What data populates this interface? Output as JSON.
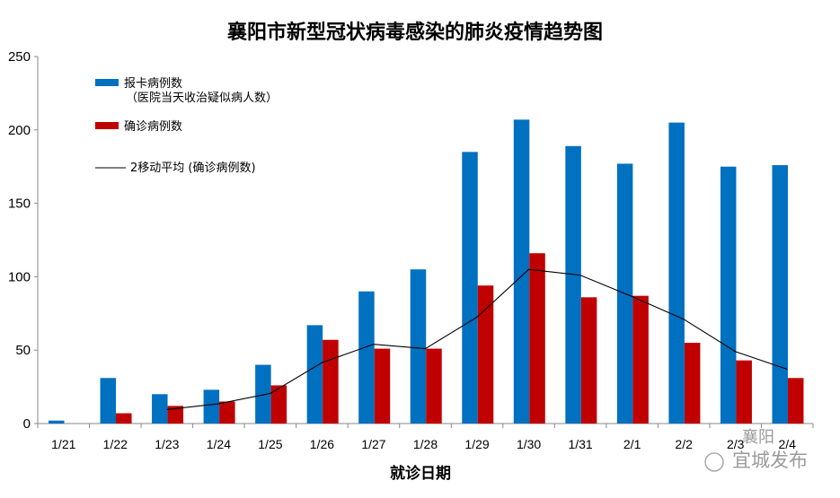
{
  "chart_data": {
    "type": "bar",
    "title": "襄阳市新型冠状病毒感染的肺炎疫情趋势图",
    "xlabel": "就诊日期",
    "ylabel": "",
    "ylim": [
      0,
      250
    ],
    "yticks": [
      0,
      50,
      100,
      150,
      200,
      250
    ],
    "grid": false,
    "legend_placement": "top-left",
    "categories": [
      "1/21",
      "1/22",
      "1/23",
      "1/24",
      "1/25",
      "1/26",
      "1/27",
      "1/28",
      "1/29",
      "1/30",
      "1/31",
      "2/1",
      "2/2",
      "2/3",
      "2/4"
    ],
    "series": [
      {
        "name": "报卡病例数",
        "name_line2": "（医院当天收治疑似病人数）",
        "type": "bar",
        "color": "#0070C0",
        "values": [
          2,
          31,
          20,
          23,
          40,
          67,
          90,
          105,
          185,
          207,
          189,
          177,
          205,
          175,
          176
        ]
      },
      {
        "name": "确诊病例数",
        "type": "bar",
        "color": "#C00000",
        "values": [
          0,
          7,
          12,
          15,
          26,
          57,
          51,
          51,
          94,
          116,
          86,
          87,
          55,
          43,
          31
        ]
      },
      {
        "name": "2移动平均 (确诊病例数)",
        "type": "line",
        "color": "#000000",
        "values": [
          null,
          3.5,
          9.5,
          13.5,
          20.5,
          41.5,
          54,
          51,
          72.5,
          105,
          101,
          86.5,
          71,
          49,
          37
        ]
      }
    ]
  },
  "watermark": {
    "line1": "襄阳",
    "line2": "宜城发布"
  }
}
